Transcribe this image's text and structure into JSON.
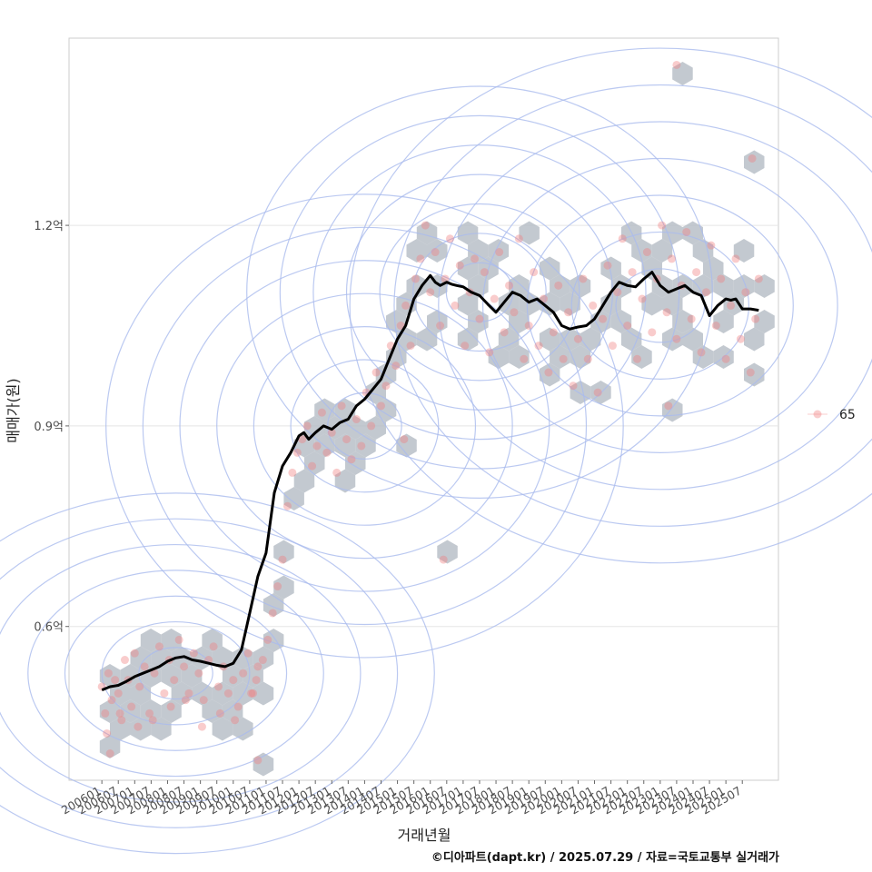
{
  "chart_data": {
    "type": "scatter",
    "title": "",
    "xlabel": "거래년월",
    "ylabel": "매매가(원)",
    "x_tick_labels": [
      "200601",
      "200607",
      "200701",
      "200707",
      "200801",
      "200807",
      "200901",
      "200907",
      "201001",
      "201007",
      "201101",
      "201107",
      "201201",
      "201207",
      "201301",
      "201307",
      "201401",
      "201407",
      "201501",
      "201507",
      "201601",
      "201607",
      "201701",
      "201707",
      "201801",
      "201807",
      "201901",
      "201907",
      "202001",
      "202007",
      "202101",
      "202107",
      "202201",
      "202207",
      "202301",
      "202307",
      "202401",
      "202407",
      "202501",
      "202507"
    ],
    "xlim": [
      -2.0,
      41.2
    ],
    "ylim": [
      0.37,
      1.48
    ],
    "y_ticks": [
      {
        "value": 0.6,
        "label": "0.6억"
      },
      {
        "value": 0.9,
        "label": "0.9억"
      },
      {
        "value": 1.2,
        "label": "1.2억"
      }
    ],
    "grid": true,
    "legend": {
      "position": "right",
      "entries": [
        {
          "label": "65",
          "color": "#f08080"
        }
      ]
    },
    "caption": "©디아파트(dapt.kr) / 2025.07.29 / 자료=국토교통부 실거래가",
    "layers": [
      "hexbin density (grey hexagons)",
      "2D density contours (blue)",
      "scatter points (pink)",
      "moving average line (black)"
    ],
    "moving_average": {
      "x": [
        0,
        0.5,
        1,
        1.5,
        2,
        2.5,
        3,
        3.5,
        4,
        4.5,
        5,
        5.5,
        6,
        6.5,
        7,
        7.5,
        8,
        8.5,
        9,
        9.5,
        10,
        10.5,
        11,
        11.5,
        12,
        12.3,
        12.6,
        13,
        13.5,
        14,
        14.5,
        15,
        15.5,
        16,
        16.5,
        17,
        17.5,
        18,
        18.5,
        19,
        19.5,
        20,
        20.3,
        20.6,
        21,
        21.3,
        21.6,
        22,
        22.5,
        23,
        23.5,
        24,
        24.5,
        25,
        25.5,
        26,
        26.5,
        27,
        27.5,
        28,
        28.5,
        29,
        29.5,
        30,
        30.5,
        31,
        31.5,
        32,
        32.5,
        33,
        33.5,
        34,
        34.5,
        35,
        35.5,
        36,
        36.5,
        37,
        37.5,
        38,
        38.3,
        38.6,
        39,
        39.5,
        40
      ],
      "y": [
        0.505,
        0.51,
        0.512,
        0.518,
        0.525,
        0.53,
        0.535,
        0.54,
        0.548,
        0.553,
        0.555,
        0.55,
        0.548,
        0.545,
        0.542,
        0.54,
        0.545,
        0.565,
        0.62,
        0.675,
        0.71,
        0.8,
        0.84,
        0.86,
        0.885,
        0.89,
        0.88,
        0.89,
        0.9,
        0.895,
        0.905,
        0.91,
        0.93,
        0.94,
        0.955,
        0.97,
        1.0,
        1.03,
        1.05,
        1.09,
        1.11,
        1.125,
        1.115,
        1.11,
        1.115,
        1.112,
        1.11,
        1.108,
        1.1,
        1.095,
        1.082,
        1.07,
        1.085,
        1.1,
        1.095,
        1.085,
        1.09,
        1.08,
        1.07,
        1.05,
        1.045,
        1.048,
        1.05,
        1.06,
        1.08,
        1.1,
        1.115,
        1.11,
        1.108,
        1.12,
        1.13,
        1.11,
        1.1,
        1.105,
        1.11,
        1.1,
        1.095,
        1.065,
        1.08,
        1.09,
        1.088,
        1.09,
        1.075,
        1.075,
        1.073
      ]
    },
    "points": {
      "x": [
        0,
        0.2,
        0.4,
        0.6,
        0.8,
        1,
        1.2,
        1.4,
        1.6,
        1.8,
        2,
        2.3,
        2.6,
        2.9,
        3.2,
        3.5,
        3.8,
        4.1,
        4.4,
        4.7,
        5,
        5.3,
        5.6,
        5.9,
        6.2,
        6.5,
        6.8,
        7.1,
        7.4,
        7.7,
        8,
        8.3,
        8.6,
        8.9,
        9.2,
        9.5,
        0.3,
        1.1,
        2.2,
        3.1,
        4.2,
        5.1,
        6.1,
        7.2,
        8.1,
        9.1,
        9.4,
        9.8,
        10.1,
        10.4,
        10.7,
        11,
        11.3,
        11.6,
        11.9,
        12.2,
        12.5,
        12.8,
        13.1,
        13.4,
        13.7,
        14,
        14.3,
        14.6,
        14.9,
        15.2,
        15.5,
        15.8,
        16.1,
        16.4,
        16.7,
        17,
        17.3,
        17.6,
        17.9,
        18.2,
        18.5,
        18.8,
        19.1,
        19.4,
        19.7,
        20,
        20.3,
        20.6,
        20.9,
        21.2,
        21.5,
        21.8,
        22.1,
        22.4,
        22.7,
        23,
        23.3,
        23.6,
        23.9,
        24.2,
        24.5,
        24.8,
        25.1,
        25.4,
        25.7,
        26,
        26.3,
        26.6,
        26.9,
        27.2,
        27.5,
        27.8,
        28.1,
        28.4,
        28.7,
        29,
        29.3,
        29.6,
        29.9,
        30.2,
        30.5,
        30.8,
        31.1,
        31.4,
        31.7,
        32,
        32.3,
        32.6,
        32.9,
        33.2,
        33.5,
        33.8,
        34.1,
        34.4,
        34.7,
        35,
        35.3,
        35.6,
        35.9,
        36.2,
        36.5,
        36.8,
        37.1,
        37.4,
        37.7,
        38,
        38.3,
        38.6,
        38.9,
        39.2,
        39.5,
        39.8,
        40,
        20.8,
        35,
        39.6,
        9.5,
        0.5,
        18.4,
        34.5
      ],
      "y": [
        0.51,
        0.47,
        0.53,
        0.49,
        0.52,
        0.5,
        0.46,
        0.55,
        0.52,
        0.48,
        0.56,
        0.51,
        0.54,
        0.47,
        0.53,
        0.57,
        0.5,
        0.55,
        0.52,
        0.58,
        0.54,
        0.5,
        0.56,
        0.53,
        0.49,
        0.55,
        0.57,
        0.51,
        0.54,
        0.5,
        0.52,
        0.48,
        0.53,
        0.56,
        0.5,
        0.54,
        0.44,
        0.47,
        0.45,
        0.46,
        0.48,
        0.49,
        0.45,
        0.47,
        0.46,
        0.5,
        0.52,
        0.55,
        0.58,
        0.62,
        0.66,
        0.7,
        0.78,
        0.83,
        0.86,
        0.88,
        0.9,
        0.84,
        0.87,
        0.92,
        0.86,
        0.89,
        0.83,
        0.93,
        0.88,
        0.85,
        0.91,
        0.87,
        0.95,
        0.9,
        0.98,
        0.93,
        0.96,
        1.02,
        0.99,
        1.05,
        1.08,
        1.02,
        1.12,
        1.15,
        1.2,
        1.1,
        1.16,
        1.05,
        1.12,
        1.18,
        1.08,
        1.14,
        1.02,
        1.1,
        1.15,
        1.06,
        1.13,
        1.01,
        1.09,
        1.16,
        1.04,
        1.11,
        1.07,
        1.18,
        1.0,
        1.05,
        1.13,
        1.02,
        1.09,
        0.98,
        1.04,
        1.11,
        1.0,
        1.07,
        0.96,
        1.03,
        1.12,
        1.0,
        1.08,
        0.95,
        1.06,
        1.14,
        1.02,
        1.1,
        1.18,
        1.05,
        1.13,
        1.0,
        1.09,
        1.16,
        1.04,
        1.12,
        1.2,
        1.07,
        1.15,
        1.03,
        1.11,
        1.19,
        1.06,
        1.13,
        1.01,
        1.1,
        1.17,
        1.05,
        1.12,
        1.0,
        1.08,
        1.15,
        1.03,
        1.1,
        0.98,
        1.06,
        1.12,
        0.7,
        1.44,
        1.3,
        0.4,
        0.41,
        0.88,
        0.93
      ]
    }
  }
}
